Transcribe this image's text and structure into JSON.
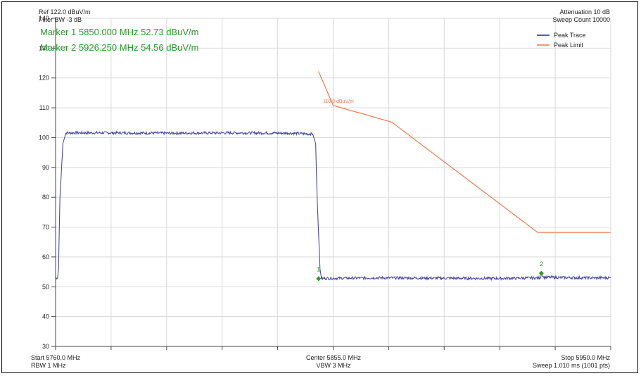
{
  "header": {
    "ref_level": "Ref 122.0 dBuV/m",
    "filter_bw": "Filter BW -3 dB",
    "attenuation": "Attenuation 10 dB",
    "sweep_count": "Sweep Count 10000"
  },
  "markers_readout": [
    "Marker 1 5850.000 MHz 52.73 dBuV/m",
    "Marker 2 5926.250 MHz 54.56 dBuV/m"
  ],
  "footer": {
    "start": "Start 5760.0 MHz",
    "rbw": "RBW 1 MHz",
    "center": "Center 5855.0 MHz",
    "vbw": "VBW 3 MHz",
    "stop": "Stop 5950.0 MHz",
    "sweep": "Sweep 1.010 ms (1001 pts)"
  },
  "colors": {
    "trace": "#4a4aa8",
    "limit": "#f07a4a",
    "marker": "#2a9a2a",
    "grid": "#d9d9d9"
  },
  "chart_data": {
    "type": "line",
    "title": "",
    "xlabel": "",
    "ylabel": "",
    "xlim": [
      5760,
      5950
    ],
    "ylim": [
      30,
      140
    ],
    "y_ticks": [
      "140",
      "130",
      "120",
      "110",
      "100",
      "90",
      "80",
      "70",
      "60",
      "50",
      "40",
      "30"
    ],
    "grid": true,
    "legend": {
      "placement": "top-right",
      "entries": [
        "Peak Trace",
        "Peak Limit"
      ]
    },
    "series": [
      {
        "name": "Peak Trace",
        "color": "#4a4aa8",
        "x": [
          5760,
          5760.7,
          5761,
          5761.5,
          5762.5,
          5763.5,
          5764,
          5780,
          5800,
          5820,
          5840,
          5848,
          5849,
          5849.5,
          5850.5,
          5851,
          5870,
          5890,
          5910,
          5926,
          5926.3,
          5927,
          5940,
          5950
        ],
        "y": [
          53,
          53,
          56,
          80,
          98,
          101.5,
          101.6,
          101.6,
          101.5,
          101.6,
          101.5,
          101.2,
          98,
          80,
          56,
          52.8,
          53,
          52.9,
          52.8,
          53,
          54.6,
          53.2,
          53,
          53
        ]
      },
      {
        "name": "Peak Limit",
        "color": "#f07a4a",
        "x": [
          5850,
          5855,
          5875,
          5925,
          5950
        ],
        "y": [
          122.2,
          110.8,
          105.2,
          68.2,
          68.2
        ]
      }
    ],
    "markers": [
      {
        "label": "1",
        "x": 5850.0,
        "y": 52.73
      },
      {
        "label": "2",
        "x": 5926.25,
        "y": 54.56
      }
    ],
    "annotations": [
      "110.8 dBuV/m"
    ]
  }
}
